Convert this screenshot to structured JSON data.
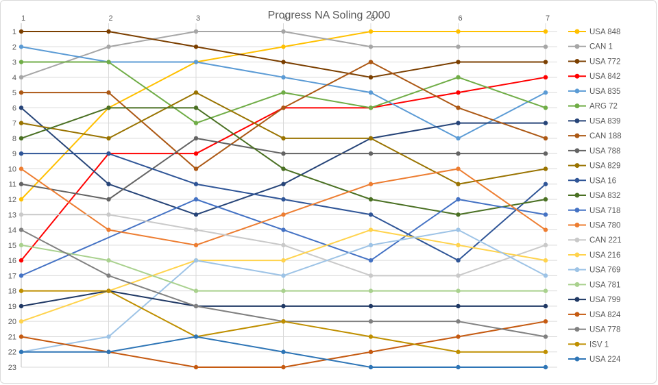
{
  "chart_data": {
    "type": "line",
    "title": "Progress NA Soling 2000",
    "title_color": "#595959",
    "x": [
      1,
      2,
      3,
      4,
      5,
      6,
      7
    ],
    "x_tick_labels": [
      "1",
      "2",
      "3",
      "4",
      "5",
      "6",
      "7"
    ],
    "y_tick_labels": [
      "1",
      "2",
      "3",
      "4",
      "5",
      "6",
      "7",
      "8",
      "9",
      "10",
      "11",
      "12",
      "13",
      "14",
      "15",
      "16",
      "17",
      "18",
      "19",
      "20",
      "21",
      "22",
      "23"
    ],
    "ylim": [
      1,
      23
    ],
    "y_axis_inverted": true,
    "grid": true,
    "gridline_color": "#d9d9d9",
    "tick_label_color": "#595959",
    "legend_position": "right",
    "marker": "circle",
    "series": [
      {
        "name": "USA 848",
        "color": "#FFC000",
        "values": [
          12,
          6,
          3,
          2,
          1,
          1,
          1
        ]
      },
      {
        "name": "CAN 1",
        "color": "#A6A6A6",
        "values": [
          4,
          2,
          1,
          1,
          2,
          2,
          2
        ]
      },
      {
        "name": "USA 772",
        "color": "#7B3F00",
        "values": [
          1,
          1,
          2,
          3,
          4,
          3,
          3
        ]
      },
      {
        "name": "USA 842",
        "color": "#FF0000",
        "values": [
          16,
          9,
          9,
          6,
          6,
          5,
          4
        ]
      },
      {
        "name": "USA 835",
        "color": "#5B9BD5",
        "values": [
          2,
          3,
          3,
          4,
          5,
          8,
          5
        ]
      },
      {
        "name": "ARG 72",
        "color": "#70AD47",
        "values": [
          3,
          3,
          7,
          5,
          6,
          4,
          6
        ]
      },
      {
        "name": "USA 839",
        "color": "#264478",
        "values": [
          6,
          11,
          13,
          11,
          8,
          7,
          7
        ]
      },
      {
        "name": "CAN 188",
        "color": "#AC5814",
        "values": [
          5,
          5,
          10,
          6,
          3,
          6,
          8
        ]
      },
      {
        "name": "USA 788",
        "color": "#636363",
        "values": [
          11,
          12,
          8,
          9,
          9,
          9,
          9
        ]
      },
      {
        "name": "USA 829",
        "color": "#997300",
        "values": [
          7,
          8,
          5,
          8,
          8,
          11,
          10
        ]
      },
      {
        "name": "USA 16",
        "color": "#2F5597",
        "values": [
          9,
          9,
          11,
          12,
          13,
          16,
          11
        ]
      },
      {
        "name": "USA 832",
        "color": "#4A7023",
        "values": [
          8,
          6,
          6,
          10,
          12,
          13,
          12
        ]
      },
      {
        "name": "USA 718",
        "color": "#4472C4",
        "values": [
          17,
          null,
          12,
          14,
          16,
          12,
          13
        ]
      },
      {
        "name": "USA 780",
        "color": "#ED7D31",
        "values": [
          10,
          14,
          15,
          13,
          11,
          10,
          14
        ]
      },
      {
        "name": "CAN 221",
        "color": "#C9C9C9",
        "values": [
          13,
          13,
          14,
          15,
          17,
          17,
          15
        ]
      },
      {
        "name": "USA 216",
        "color": "#FFD34D",
        "values": [
          20,
          18,
          16,
          16,
          14,
          15,
          16
        ]
      },
      {
        "name": "USA 769",
        "color": "#9DC3E6",
        "values": [
          22,
          21,
          16,
          17,
          15,
          14,
          17
        ]
      },
      {
        "name": "USA 781",
        "color": "#A9D18E",
        "values": [
          15,
          16,
          18,
          18,
          18,
          18,
          18
        ]
      },
      {
        "name": "USA 799",
        "color": "#1F3864",
        "values": [
          19,
          18,
          19,
          19,
          19,
          19,
          19
        ]
      },
      {
        "name": "USA 824",
        "color": "#C55A11",
        "values": [
          21,
          22,
          23,
          23,
          22,
          21,
          20
        ]
      },
      {
        "name": "USA 778",
        "color": "#808080",
        "values": [
          14,
          17,
          19,
          20,
          20,
          20,
          21
        ]
      },
      {
        "name": "ISV  1",
        "color": "#BF8F00",
        "values": [
          18,
          18,
          21,
          20,
          21,
          22,
          22
        ]
      },
      {
        "name": "USA 224",
        "color": "#2E75B6",
        "values": [
          22,
          22,
          21,
          22,
          23,
          23,
          23
        ]
      }
    ]
  }
}
